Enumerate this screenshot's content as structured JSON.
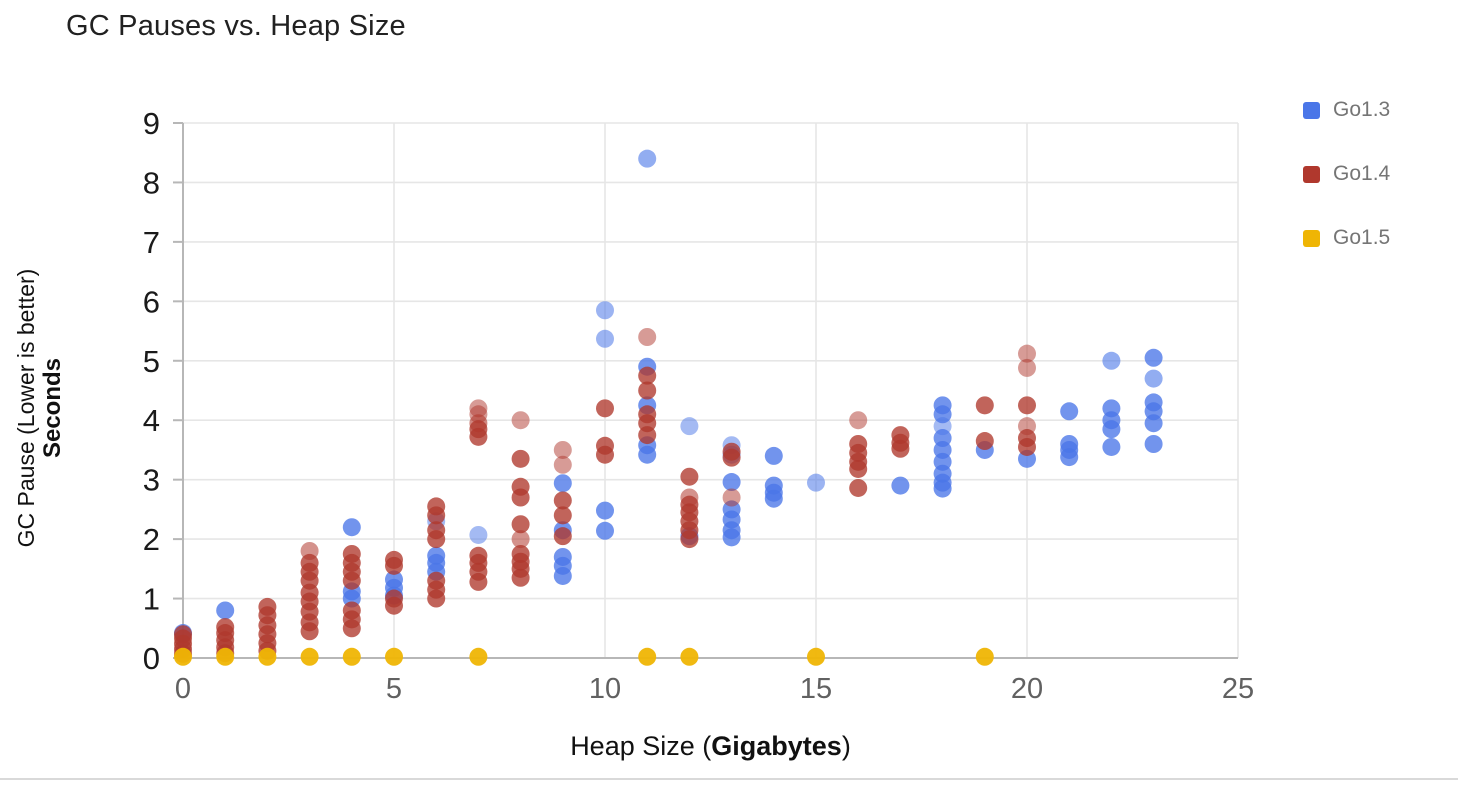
{
  "title": "GC Pauses vs. Heap Size",
  "legend": {
    "items": [
      {
        "label": "Go1.3",
        "color": "#4a76e8"
      },
      {
        "label": "Go1.4",
        "color": "#b0382d"
      },
      {
        "label": "Go1.5",
        "color": "#efb504"
      }
    ]
  },
  "axis_titles": {
    "y_line1": "GC Pause (Lower is better)",
    "y_line2": "Seconds",
    "x_prefix": "Heap Size (",
    "x_bold": "Gigabytes",
    "x_suffix": ")"
  },
  "chart_data": {
    "type": "scatter",
    "title": "GC Pauses vs. Heap Size",
    "xlabel": "Heap Size (Gigabytes)",
    "ylabel": "GC Pause (Lower is better) Seconds",
    "xlim": [
      0,
      25
    ],
    "ylim": [
      0,
      9
    ],
    "xticks": [
      0,
      5,
      10,
      15,
      20,
      25
    ],
    "yticks": [
      0,
      1,
      2,
      3,
      4,
      5,
      6,
      7,
      8,
      9
    ],
    "grid": true,
    "legend_position": "right",
    "colors": {
      "axis_line": "#b7b7b7",
      "gridline": "#e6e6e6",
      "y_tick_label": "#1a1a1a",
      "x_tick_label": "#616161"
    },
    "series": [
      {
        "name": "Go1.3",
        "color": "#4a76e8",
        "points": [
          [
            0,
            0.42
          ],
          [
            1,
            0.8
          ],
          [
            4,
            2.2
          ],
          [
            4,
            1.12
          ],
          [
            4,
            1.0
          ],
          [
            5,
            1.32
          ],
          [
            5,
            1.18
          ],
          [
            5,
            1.05
          ],
          [
            6,
            2.3,
            0.5
          ],
          [
            6,
            1.72
          ],
          [
            6,
            1.6
          ],
          [
            6,
            1.45
          ],
          [
            7,
            2.07,
            0.5
          ],
          [
            9,
            2.94
          ],
          [
            9,
            2.15
          ],
          [
            9,
            1.7
          ],
          [
            9,
            1.55
          ],
          [
            9,
            1.38
          ],
          [
            10,
            5.85,
            0.55
          ],
          [
            10,
            5.37,
            0.55
          ],
          [
            10,
            2.48
          ],
          [
            10,
            2.14
          ],
          [
            11,
            8.4,
            0.6
          ],
          [
            11,
            4.9
          ],
          [
            11,
            4.25
          ],
          [
            11,
            3.58
          ],
          [
            11,
            3.42
          ],
          [
            12,
            3.9,
            0.5
          ],
          [
            12,
            2.05
          ],
          [
            13,
            3.58,
            0.5
          ],
          [
            13,
            3.42,
            0.6
          ],
          [
            13,
            2.96
          ],
          [
            13,
            2.5
          ],
          [
            13,
            2.33
          ],
          [
            13,
            2.15
          ],
          [
            13,
            2.03
          ],
          [
            14,
            3.4
          ],
          [
            14,
            2.9
          ],
          [
            14,
            2.78
          ],
          [
            14,
            2.68
          ],
          [
            15,
            2.95,
            0.55
          ],
          [
            17,
            2.9
          ],
          [
            18,
            4.25
          ],
          [
            18,
            4.1
          ],
          [
            18,
            3.9,
            0.5
          ],
          [
            18,
            3.7
          ],
          [
            18,
            3.5
          ],
          [
            18,
            3.3
          ],
          [
            18,
            3.1
          ],
          [
            18,
            2.95
          ],
          [
            18,
            2.85
          ],
          [
            19,
            3.5
          ],
          [
            20,
            3.35
          ],
          [
            21,
            4.15
          ],
          [
            21,
            3.6
          ],
          [
            21,
            3.5
          ],
          [
            21,
            3.38
          ],
          [
            22,
            5.0,
            0.6
          ],
          [
            22,
            4.2
          ],
          [
            22,
            4.0
          ],
          [
            22,
            3.85
          ],
          [
            22,
            3.55
          ],
          [
            23,
            5.05
          ],
          [
            23,
            4.7,
            0.6
          ],
          [
            23,
            4.3
          ],
          [
            23,
            4.15
          ],
          [
            23,
            3.95
          ],
          [
            23,
            3.6
          ]
        ]
      },
      {
        "name": "Go1.4",
        "color": "#b0382d",
        "points": [
          [
            0,
            0.07
          ],
          [
            0,
            0.15
          ],
          [
            0,
            0.24
          ],
          [
            0,
            0.33
          ],
          [
            0,
            0.4
          ],
          [
            1,
            0.08
          ],
          [
            1,
            0.18
          ],
          [
            1,
            0.3
          ],
          [
            1,
            0.42
          ],
          [
            1,
            0.52
          ],
          [
            2,
            0.12
          ],
          [
            2,
            0.25
          ],
          [
            2,
            0.4
          ],
          [
            2,
            0.55
          ],
          [
            2,
            0.72
          ],
          [
            2,
            0.86
          ],
          [
            3,
            0.45
          ],
          [
            3,
            0.6
          ],
          [
            3,
            0.78
          ],
          [
            3,
            0.95
          ],
          [
            3,
            1.1
          ],
          [
            3,
            1.3
          ],
          [
            3,
            1.45
          ],
          [
            3,
            1.6
          ],
          [
            3,
            1.8,
            0.55
          ],
          [
            4,
            0.5
          ],
          [
            4,
            0.65
          ],
          [
            4,
            0.8
          ],
          [
            4,
            1.3
          ],
          [
            4,
            1.45
          ],
          [
            4,
            1.6
          ],
          [
            4,
            1.75
          ],
          [
            5,
            0.88
          ],
          [
            5,
            1.0
          ],
          [
            5,
            1.55
          ],
          [
            5,
            1.65
          ],
          [
            6,
            1.0
          ],
          [
            6,
            1.15
          ],
          [
            6,
            1.3
          ],
          [
            6,
            2.0
          ],
          [
            6,
            2.15
          ],
          [
            6,
            2.4
          ],
          [
            6,
            2.55
          ],
          [
            7,
            1.28
          ],
          [
            7,
            1.45
          ],
          [
            7,
            1.6
          ],
          [
            7,
            1.72
          ],
          [
            7,
            3.72
          ],
          [
            7,
            3.85
          ],
          [
            7,
            3.95,
            0.6
          ],
          [
            7,
            4.1,
            0.5
          ],
          [
            7,
            4.2,
            0.5
          ],
          [
            8,
            1.35
          ],
          [
            8,
            1.5
          ],
          [
            8,
            1.62
          ],
          [
            8,
            1.75
          ],
          [
            8,
            2.0,
            0.55
          ],
          [
            8,
            2.25
          ],
          [
            8,
            2.7
          ],
          [
            8,
            2.88
          ],
          [
            8,
            3.35
          ],
          [
            8,
            4.0,
            0.5
          ],
          [
            9,
            2.05
          ],
          [
            9,
            2.4
          ],
          [
            9,
            2.65
          ],
          [
            9,
            3.25,
            0.5
          ],
          [
            9,
            3.5,
            0.5
          ],
          [
            10,
            3.42
          ],
          [
            10,
            3.57
          ],
          [
            10,
            4.2
          ],
          [
            11,
            5.4,
            0.5
          ],
          [
            11,
            4.75
          ],
          [
            11,
            4.5
          ],
          [
            11,
            4.1
          ],
          [
            11,
            3.95
          ],
          [
            11,
            3.75
          ],
          [
            12,
            3.05
          ],
          [
            12,
            2.7,
            0.55
          ],
          [
            12,
            2.58
          ],
          [
            12,
            2.45
          ],
          [
            12,
            2.3
          ],
          [
            12,
            2.15
          ],
          [
            12,
            2.0
          ],
          [
            13,
            3.47
          ],
          [
            13,
            3.37
          ],
          [
            13,
            2.7,
            0.5
          ],
          [
            16,
            4.0,
            0.5
          ],
          [
            16,
            3.6
          ],
          [
            16,
            3.45
          ],
          [
            16,
            3.3
          ],
          [
            16,
            3.18
          ],
          [
            16,
            2.86
          ],
          [
            17,
            3.75
          ],
          [
            17,
            3.62
          ],
          [
            17,
            3.52
          ],
          [
            19,
            4.25
          ],
          [
            19,
            3.65
          ],
          [
            20,
            5.12,
            0.5
          ],
          [
            20,
            4.88,
            0.5
          ],
          [
            20,
            4.25
          ],
          [
            20,
            3.9,
            0.5
          ],
          [
            20,
            3.7
          ],
          [
            20,
            3.55
          ]
        ]
      },
      {
        "name": "Go1.5",
        "color": "#efb504",
        "points": [
          [
            0,
            0.02
          ],
          [
            1,
            0.02
          ],
          [
            2,
            0.02
          ],
          [
            3,
            0.02
          ],
          [
            4,
            0.02
          ],
          [
            5,
            0.02
          ],
          [
            7,
            0.02
          ],
          [
            11,
            0.02
          ],
          [
            12,
            0.02
          ],
          [
            15,
            0.02
          ],
          [
            19,
            0.02
          ]
        ]
      }
    ]
  }
}
